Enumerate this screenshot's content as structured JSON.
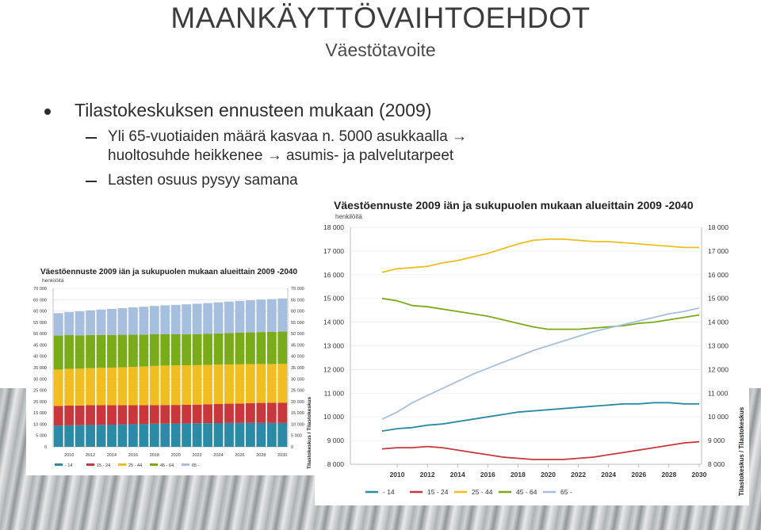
{
  "slide": {
    "title": "MAANKÄYTTÖVAIHTOEHDOT",
    "subtitle": "Väestötavoite",
    "bullet": "Tilastokeskuksen ennusteen mukaan (2009)",
    "sub_bullets": [
      "Yli 65-vuotiaiden määrä kasvaa n. 5000 asukkaalla →",
      "huoltosuhde heikkenee → asumis- ja palvelutarpeet",
      "Lasten osuus pysyy samana"
    ]
  },
  "colors": {
    "s0_14": "#2b8aa5",
    "s15_24": "#c9363c",
    "s25_44": "#f0be20",
    "s45_64": "#7aab19",
    "s65": "#a7bfdf"
  },
  "chart_data": [
    {
      "type": "bar",
      "stacked": true,
      "title": "Väestöennuste 2009 iän ja sukupuolen mukaan alueittain 2009 -2040",
      "ylabel": "henkilöitä",
      "source_label": "Tilastokeskus / Tilastokeskus",
      "ylim": [
        0,
        70000
      ],
      "yticks": [
        "0",
        "5 000",
        "10 000",
        "15 000",
        "20 000",
        "25 000",
        "30 000",
        "35 000",
        "40 000",
        "45 000",
        "50 000",
        "55 000",
        "60 000",
        "65 000",
        "70 000"
      ],
      "x": [
        2009,
        2010,
        2011,
        2012,
        2013,
        2014,
        2015,
        2016,
        2017,
        2018,
        2019,
        2020,
        2021,
        2022,
        2023,
        2024,
        2025,
        2026,
        2027,
        2028,
        2029,
        2030
      ],
      "xtick_labels": [
        "2010",
        "2012",
        "2014",
        "2016",
        "2018",
        "2020",
        "2022",
        "2024",
        "2026",
        "2028",
        "2030"
      ],
      "legend": [
        "- 14",
        "15 - 24",
        "25 - 44",
        "45 - 64",
        "65 -"
      ],
      "series": [
        {
          "name": "- 14",
          "values": [
            9400,
            9500,
            9550,
            9650,
            9700,
            9800,
            9900,
            10000,
            10100,
            10200,
            10250,
            10300,
            10350,
            10400,
            10450,
            10500,
            10550,
            10550,
            10600,
            10600,
            10550,
            10550
          ]
        },
        {
          "name": "15 - 24",
          "values": [
            8650,
            8700,
            8700,
            8750,
            8700,
            8600,
            8500,
            8400,
            8300,
            8250,
            8200,
            8200,
            8200,
            8250,
            8300,
            8400,
            8500,
            8600,
            8700,
            8800,
            8900,
            8950
          ]
        },
        {
          "name": "25 - 44",
          "values": [
            16100,
            16250,
            16300,
            16350,
            16500,
            16600,
            16750,
            16900,
            17100,
            17300,
            17450,
            17500,
            17500,
            17450,
            17400,
            17400,
            17350,
            17300,
            17250,
            17200,
            17150,
            17150
          ]
        },
        {
          "name": "45 - 64",
          "values": [
            15000,
            14900,
            14700,
            14650,
            14550,
            14450,
            14350,
            14250,
            14100,
            13950,
            13800,
            13700,
            13700,
            13700,
            13750,
            13800,
            13850,
            13950,
            14000,
            14100,
            14200,
            14300
          ]
        },
        {
          "name": "65 -",
          "values": [
            9900,
            10200,
            10600,
            10900,
            11200,
            11500,
            11800,
            12050,
            12300,
            12550,
            12800,
            13000,
            13200,
            13400,
            13600,
            13750,
            13900,
            14050,
            14200,
            14350,
            14450,
            14600
          ]
        }
      ]
    },
    {
      "type": "line",
      "title": "Väestöennuste 2009 iän ja sukupuolen mukaan alueittain 2009 -2040",
      "ylabel": "henkilöitä",
      "source_label": "Tilastokeskus / Tilastokeskus",
      "ylim": [
        8000,
        18000
      ],
      "yticks": [
        "8 000",
        "9 000",
        "10 000",
        "11 000",
        "12 000",
        "13 000",
        "14 000",
        "15 000",
        "16 000",
        "17 000",
        "18 000"
      ],
      "x": [
        2009,
        2010,
        2011,
        2012,
        2013,
        2014,
        2015,
        2016,
        2017,
        2018,
        2019,
        2020,
        2021,
        2022,
        2023,
        2024,
        2025,
        2026,
        2027,
        2028,
        2029,
        2030
      ],
      "xtick_labels": [
        "2010",
        "2012",
        "2014",
        "2016",
        "2018",
        "2020",
        "2022",
        "2024",
        "2026",
        "2028",
        "2030"
      ],
      "legend": [
        "- 14",
        "15 - 24",
        "25 - 44",
        "45 - 64",
        "65 -"
      ],
      "series": [
        {
          "name": "- 14",
          "values": [
            9400,
            9500,
            9550,
            9650,
            9700,
            9800,
            9900,
            10000,
            10100,
            10200,
            10250,
            10300,
            10350,
            10400,
            10450,
            10500,
            10550,
            10550,
            10600,
            10600,
            10550,
            10550
          ]
        },
        {
          "name": "15 - 24",
          "values": [
            8650,
            8700,
            8700,
            8750,
            8700,
            8600,
            8500,
            8400,
            8300,
            8250,
            8200,
            8200,
            8200,
            8250,
            8300,
            8400,
            8500,
            8600,
            8700,
            8800,
            8900,
            8950
          ]
        },
        {
          "name": "25 - 44",
          "values": [
            16100,
            16250,
            16300,
            16350,
            16500,
            16600,
            16750,
            16900,
            17100,
            17300,
            17450,
            17500,
            17500,
            17450,
            17400,
            17400,
            17350,
            17300,
            17250,
            17200,
            17150,
            17150
          ]
        },
        {
          "name": "45 - 64",
          "values": [
            15000,
            14900,
            14700,
            14650,
            14550,
            14450,
            14350,
            14250,
            14100,
            13950,
            13800,
            13700,
            13700,
            13700,
            13750,
            13800,
            13850,
            13950,
            14000,
            14100,
            14200,
            14300
          ]
        },
        {
          "name": "65 -",
          "values": [
            9900,
            10200,
            10600,
            10900,
            11200,
            11500,
            11800,
            12050,
            12300,
            12550,
            12800,
            13000,
            13200,
            13400,
            13600,
            13750,
            13900,
            14050,
            14200,
            14350,
            14450,
            14600
          ]
        }
      ]
    }
  ]
}
